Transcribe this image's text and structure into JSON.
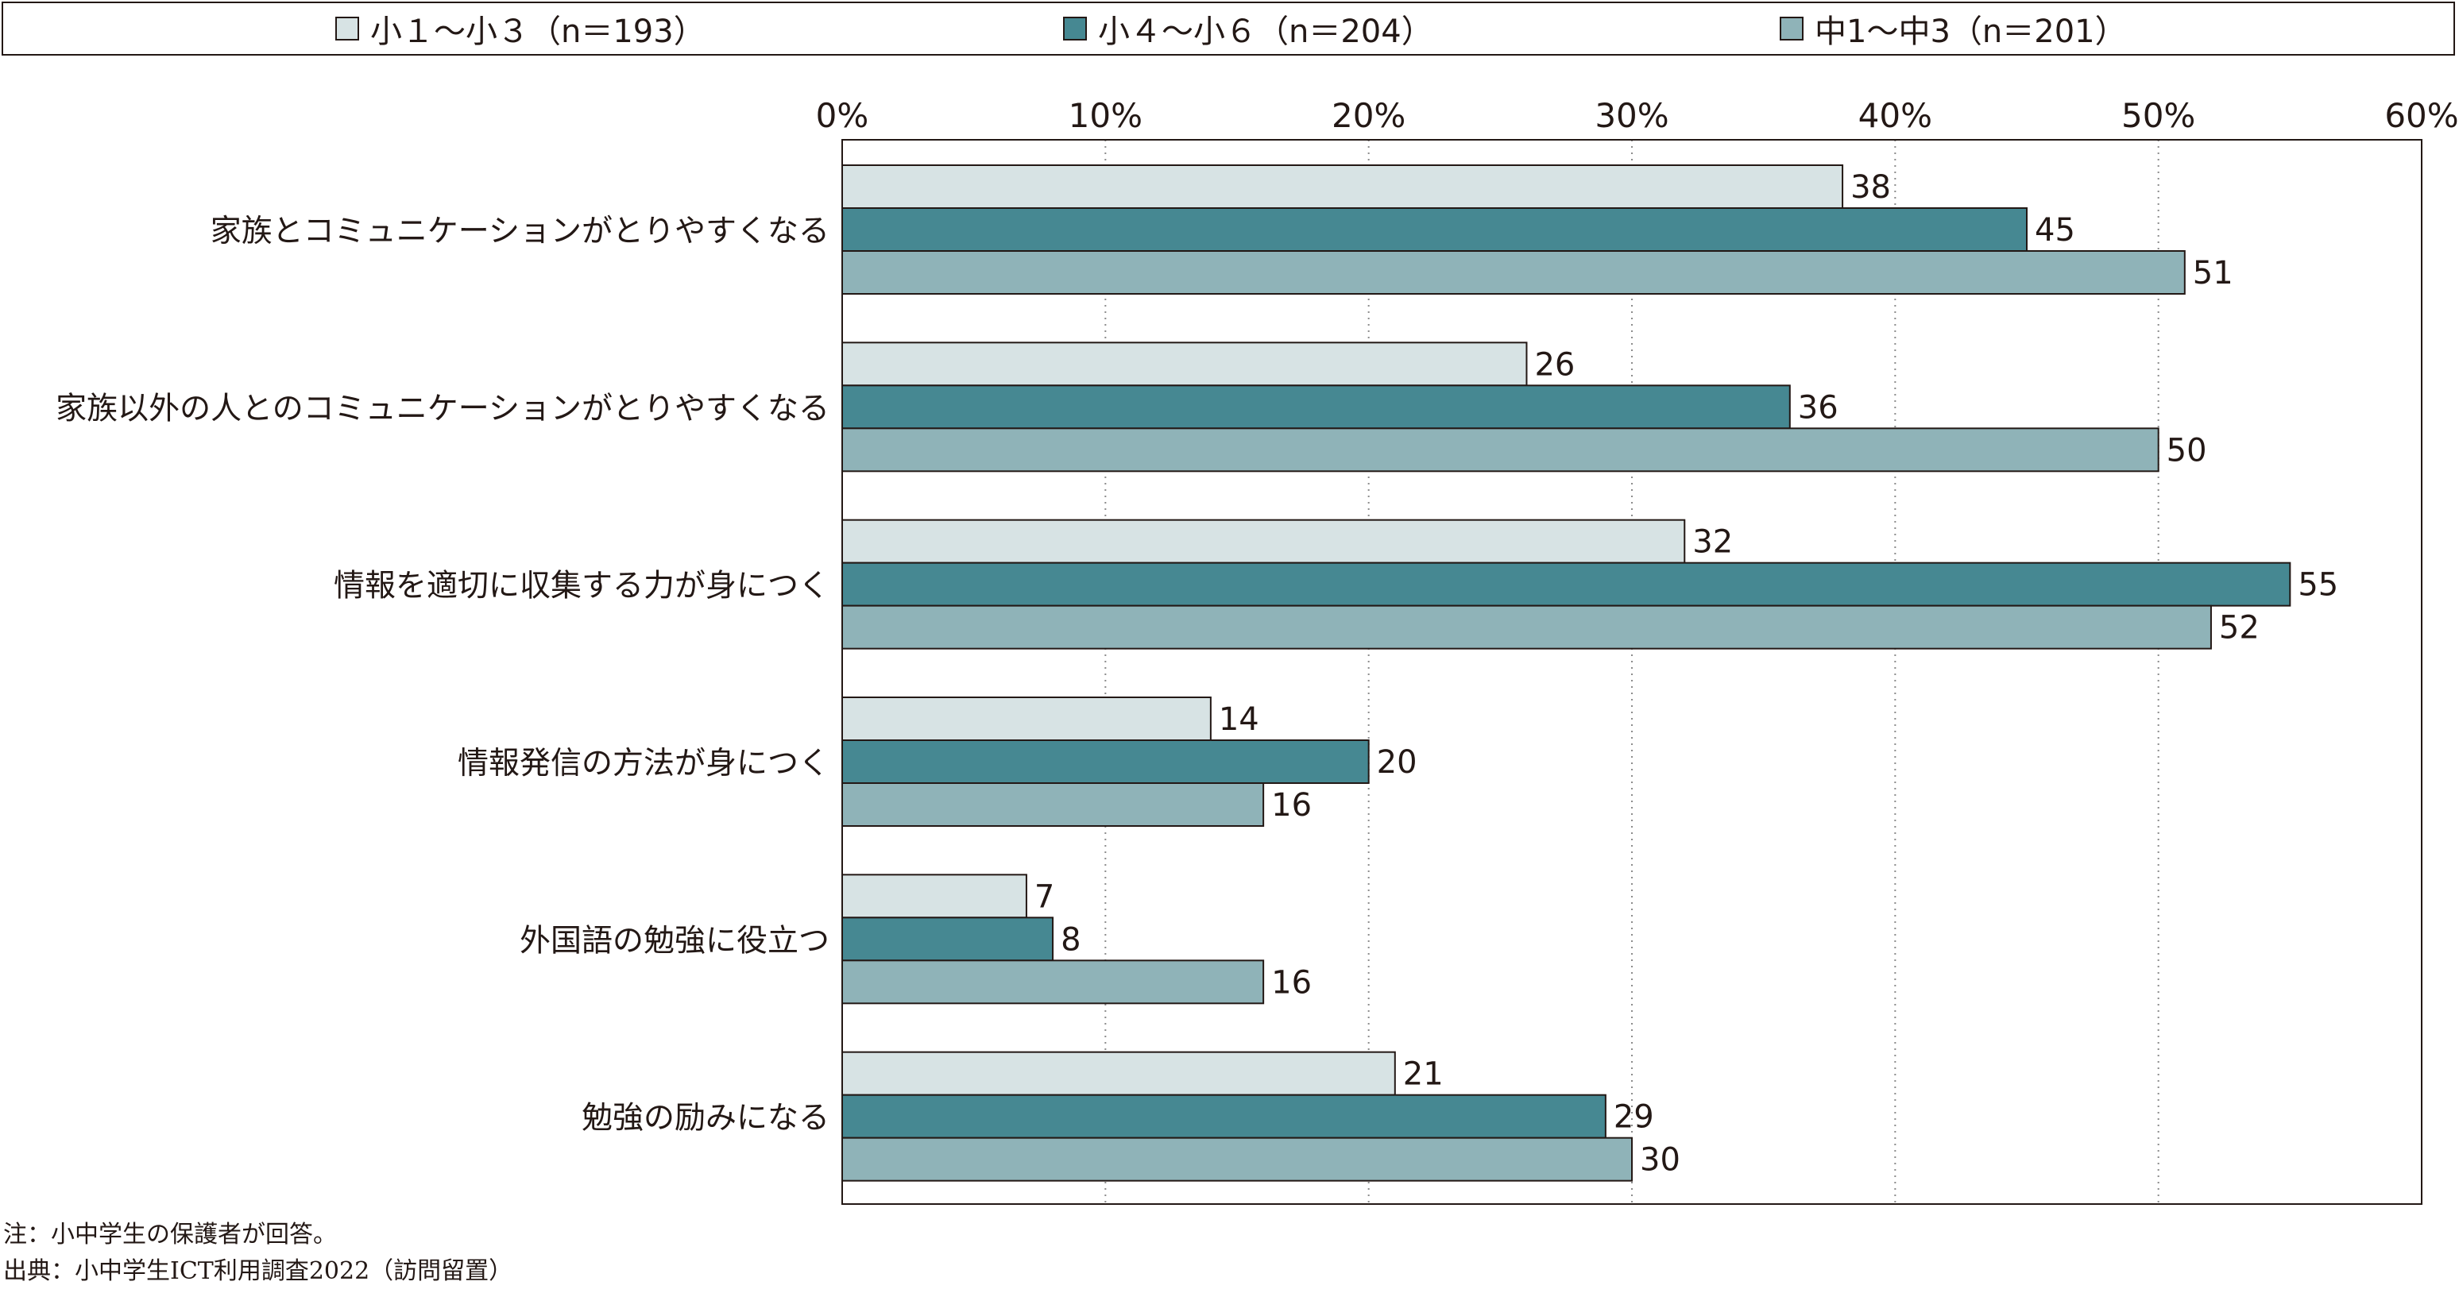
{
  "chart_data": {
    "type": "bar",
    "orientation": "horizontal",
    "categories": [
      "家族とコミュニケーションがとりやすくなる",
      "家族以外の人とのコミュニケーションがとりやすくなる",
      "情報を適切に収集する力が身につく",
      "情報発信の方法が身につく",
      "外国語の勉強に役立つ",
      "勉強の励みになる"
    ],
    "series": [
      {
        "name": "小１〜小３（n＝193）",
        "color": "#d7e3e4",
        "values": [
          38,
          26,
          32,
          14,
          7,
          21
        ]
      },
      {
        "name": "小４〜小６（n＝204）",
        "color": "#468892",
        "values": [
          45,
          36,
          55,
          20,
          8,
          29
        ]
      },
      {
        "name": "中1〜中3（n＝201）",
        "color": "#8fb3b8",
        "values": [
          51,
          50,
          52,
          16,
          16,
          30
        ]
      }
    ],
    "xlim": [
      0,
      60
    ],
    "ticks": [
      "0%",
      "10%",
      "20%",
      "30%",
      "40%",
      "50%",
      "60%"
    ],
    "tick_values": [
      0,
      10,
      20,
      30,
      40,
      50,
      60
    ],
    "grid": "vertical-dotted",
    "legend_position": "top"
  },
  "notes": {
    "note": "注：小中学生の保護者が回答。",
    "source": "出典：小中学生ICT利用調査2022（訪問留置）"
  }
}
